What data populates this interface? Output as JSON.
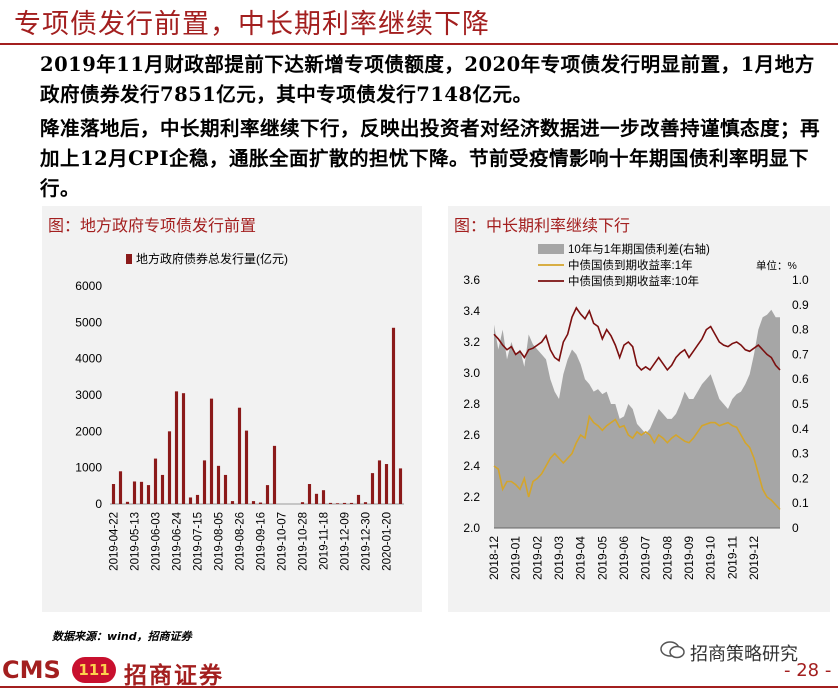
{
  "slide": {
    "title": "专项债发行前置，中长期利率继续下降",
    "para1": "2019年11月财政部提前下达新增专项债额度，2020年专项债发行明显前置，1月地方政府债券发行7851亿元，其中专项债发行7148亿元。",
    "para2": "降准落地后，中长期利率继续下行，反映出投资者对经济数据进一步改善持谨慎态度；再加上12月CPI企稳，通胀全面扩散的担忧下降。节前受疫情影响十年期国债利率明显下行。",
    "source": "数据来源：wind，招商证券",
    "logo_en": "CMS",
    "logo_badge": "111",
    "logo_cn": "招商证券",
    "wechat": "招商策略研究",
    "page": "- 28 -"
  },
  "colors": {
    "brand": "#a31f1f",
    "bar": "#8b1a1a",
    "area": "#a6a6a6",
    "line1y": "#d4a52b",
    "line10y": "#7b0f0f",
    "panel_bg": "#f2f2f2"
  },
  "chart_data": [
    {
      "type": "bar",
      "panel_title": "图：地方政府专项债发行前置",
      "series": [
        {
          "name": "地方政府债券总发行量(亿元)"
        }
      ],
      "ylim": [
        0,
        6000
      ],
      "yticks": [
        0,
        1000,
        2000,
        3000,
        4000,
        5000,
        6000
      ],
      "xtick_labels": [
        "2019-04-22",
        "2019-05-13",
        "2019-06-03",
        "2019-06-24",
        "2019-07-15",
        "2019-08-05",
        "2019-08-26",
        "2019-09-16",
        "2019-10-07",
        "2019-10-28",
        "2019-11-18",
        "2019-12-09",
        "2019-12-30",
        "2020-01-20"
      ],
      "weeks": 42,
      "values": [
        550,
        900,
        60,
        620,
        610,
        520,
        1250,
        800,
        2000,
        3100,
        3050,
        180,
        250,
        1200,
        2900,
        1050,
        800,
        80,
        2650,
        2020,
        80,
        40,
        520,
        1600,
        0,
        0,
        0,
        50,
        550,
        280,
        380,
        30,
        20,
        30,
        30,
        250,
        50,
        850,
        1200,
        1100,
        4850,
        980
      ]
    },
    {
      "type": "line",
      "panel_title": "图：中长期利率继续下行",
      "unit_label": "单位：%",
      "series": [
        {
          "name": "10年与1年期国债利差(右轴)",
          "axis": "right",
          "kind": "area"
        },
        {
          "name": "中债国债到期收益率:1年",
          "axis": "left",
          "kind": "line"
        },
        {
          "name": "中债国债到期收益率:10年",
          "axis": "left",
          "kind": "line"
        }
      ],
      "ylim_left": [
        2.0,
        3.6
      ],
      "yticks_left": [
        2.0,
        2.2,
        2.4,
        2.6,
        2.8,
        3.0,
        3.2,
        3.4,
        3.6
      ],
      "ylim_right": [
        0,
        1.0
      ],
      "yticks_right": [
        0,
        0.1,
        0.2,
        0.3,
        0.4,
        0.5,
        0.6,
        0.7,
        0.8,
        0.9,
        1.0
      ],
      "xtick_labels": [
        "2018-12",
        "2019-01",
        "2019-02",
        "2019-03",
        "2019-04",
        "2019-05",
        "2019-06",
        "2019-07",
        "2019-08",
        "2019-09",
        "2019-10",
        "2019-11",
        "2019-12"
      ],
      "x_months": [
        0,
        0.2,
        0.4,
        0.6,
        0.8,
        1,
        1.2,
        1.4,
        1.6,
        1.8,
        2,
        2.2,
        2.4,
        2.6,
        2.8,
        3,
        3.2,
        3.4,
        3.6,
        3.8,
        4,
        4.2,
        4.4,
        4.6,
        4.8,
        5,
        5.2,
        5.4,
        5.6,
        5.8,
        6,
        6.2,
        6.4,
        6.6,
        6.8,
        7,
        7.2,
        7.4,
        7.6,
        7.8,
        8,
        8.2,
        8.4,
        8.6,
        8.8,
        9,
        9.2,
        9.4,
        9.6,
        9.8,
        10,
        10.2,
        10.4,
        10.6,
        10.8,
        11,
        11.2,
        11.4,
        11.6,
        11.8,
        12,
        12.2,
        12.4,
        12.6,
        12.8,
        13,
        13.2
      ],
      "y10": [
        3.25,
        3.22,
        3.18,
        3.15,
        3.17,
        3.12,
        3.14,
        3.1,
        3.15,
        3.16,
        3.18,
        3.2,
        3.24,
        3.15,
        3.1,
        3.08,
        3.2,
        3.25,
        3.36,
        3.42,
        3.38,
        3.35,
        3.4,
        3.32,
        3.3,
        3.22,
        3.28,
        3.24,
        3.18,
        3.1,
        3.18,
        3.2,
        3.17,
        3.05,
        3.02,
        3.04,
        3.02,
        3.06,
        3.1,
        3.06,
        3.02,
        3.05,
        3.1,
        3.13,
        3.15,
        3.1,
        3.14,
        3.18,
        3.22,
        3.28,
        3.3,
        3.25,
        3.2,
        3.18,
        3.17,
        3.19,
        3.2,
        3.18,
        3.15,
        3.14,
        3.16,
        3.18,
        3.15,
        3.12,
        3.1,
        3.05,
        3.02
      ],
      "y1": [
        2.4,
        2.38,
        2.25,
        2.3,
        2.3,
        2.28,
        2.25,
        2.32,
        2.2,
        2.3,
        2.32,
        2.35,
        2.4,
        2.45,
        2.48,
        2.45,
        2.42,
        2.45,
        2.48,
        2.55,
        2.6,
        2.58,
        2.72,
        2.68,
        2.66,
        2.63,
        2.66,
        2.68,
        2.7,
        2.65,
        2.66,
        2.6,
        2.58,
        2.62,
        2.6,
        2.62,
        2.6,
        2.55,
        2.6,
        2.58,
        2.55,
        2.58,
        2.6,
        2.58,
        2.56,
        2.55,
        2.58,
        2.62,
        2.66,
        2.67,
        2.68,
        2.68,
        2.66,
        2.67,
        2.68,
        2.66,
        2.65,
        2.6,
        2.55,
        2.52,
        2.45,
        2.35,
        2.25,
        2.2,
        2.18,
        2.15,
        2.12
      ],
      "spread": [
        0.82,
        0.72,
        0.8,
        0.68,
        0.75,
        0.7,
        0.72,
        0.65,
        0.78,
        0.74,
        0.72,
        0.7,
        0.68,
        0.6,
        0.55,
        0.52,
        0.62,
        0.68,
        0.72,
        0.7,
        0.66,
        0.6,
        0.58,
        0.55,
        0.56,
        0.54,
        0.55,
        0.5,
        0.5,
        0.44,
        0.45,
        0.5,
        0.48,
        0.42,
        0.4,
        0.38,
        0.4,
        0.44,
        0.48,
        0.46,
        0.44,
        0.44,
        0.46,
        0.5,
        0.55,
        0.52,
        0.52,
        0.55,
        0.58,
        0.6,
        0.62,
        0.57,
        0.52,
        0.5,
        0.48,
        0.52,
        0.54,
        0.55,
        0.58,
        0.62,
        0.7,
        0.8,
        0.85,
        0.86,
        0.88,
        0.85,
        0.85
      ]
    }
  ]
}
